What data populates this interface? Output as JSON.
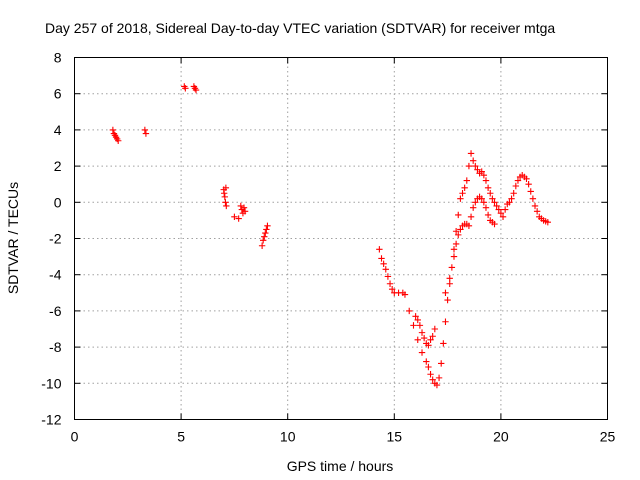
{
  "chart_data": {
    "type": "scatter",
    "title": "Day 257 of 2018, Sidereal Day-to-day VTEC variation (SDTVAR) for receiver mtga",
    "xlabel": "GPS time / hours",
    "ylabel": "SDTVAR / TECUs",
    "xlim": [
      0,
      25
    ],
    "ylim": [
      -12,
      8
    ],
    "x_ticks": [
      0,
      5,
      10,
      15,
      20,
      25
    ],
    "y_ticks": [
      -12,
      -10,
      -8,
      -6,
      -4,
      -2,
      0,
      2,
      4,
      6,
      8
    ],
    "grid": true,
    "legend": "none",
    "marker": "plus",
    "color": "#ff0000",
    "series": [
      {
        "x": [
          1.8,
          1.85,
          1.9,
          1.95,
          2.0,
          2.05,
          3.3,
          3.35,
          5.15,
          5.2,
          5.6,
          5.65,
          5.7,
          7.0,
          7.02,
          7.05,
          7.08,
          7.1,
          7.12,
          7.5,
          7.7,
          7.8,
          7.85,
          7.9,
          7.95,
          8.0,
          8.8,
          8.85,
          8.9,
          8.95,
          9.0,
          9.05,
          14.3,
          14.4,
          14.5,
          14.6,
          14.7,
          14.8,
          14.9,
          15.0,
          15.2,
          15.4,
          15.5,
          15.7,
          15.9,
          16.1,
          16.3,
          16.5,
          16.6,
          16.7,
          16.8,
          16.9,
          17.0,
          17.1,
          17.2,
          17.3,
          17.4,
          17.5,
          17.6,
          17.7,
          17.8,
          17.9,
          18.0,
          18.1,
          18.2,
          18.3,
          18.4,
          18.5,
          18.6,
          18.7,
          18.8,
          18.9,
          19.0,
          19.1,
          19.2,
          19.3,
          19.4,
          19.5,
          19.6,
          19.7,
          19.8,
          19.9,
          20.0,
          20.1,
          20.2,
          20.3,
          20.4,
          20.5,
          20.6,
          20.7,
          20.8,
          20.9,
          21.0,
          21.1,
          21.2,
          21.3,
          21.4,
          21.5,
          21.6,
          21.7,
          21.8,
          21.9,
          22.0,
          22.1,
          22.2,
          16.0,
          16.1,
          16.2,
          16.3,
          16.4,
          16.5,
          16.6,
          16.7,
          16.8,
          16.9,
          17.4,
          17.6,
          17.8,
          17.9,
          18.0,
          18.1,
          18.2,
          18.3,
          18.4,
          18.5,
          18.6,
          18.7,
          18.8,
          18.9,
          19.0,
          19.1,
          19.2,
          19.3,
          19.4,
          19.5,
          19.6,
          19.7
        ],
        "y": [
          4.0,
          3.8,
          3.7,
          3.6,
          3.5,
          3.4,
          4.0,
          3.8,
          6.4,
          6.3,
          6.4,
          6.3,
          6.2,
          0.7,
          0.5,
          0.3,
          0.0,
          0.8,
          -0.2,
          -0.8,
          -0.9,
          -0.2,
          -0.4,
          -0.6,
          -0.3,
          -0.5,
          -2.4,
          -2.1,
          -1.9,
          -1.7,
          -1.5,
          -1.3,
          -2.6,
          -3.1,
          -3.4,
          -3.7,
          -4.1,
          -4.5,
          -4.8,
          -5.0,
          -5.0,
          -5.0,
          -5.1,
          -6.0,
          -6.8,
          -7.6,
          -8.3,
          -8.8,
          -9.1,
          -9.5,
          -9.8,
          -10.0,
          -10.1,
          -9.7,
          -8.9,
          -7.8,
          -6.6,
          -5.4,
          -4.5,
          -3.6,
          -2.6,
          -1.6,
          -0.7,
          0.2,
          0.5,
          0.8,
          1.2,
          2.0,
          2.7,
          2.3,
          2.0,
          1.8,
          1.6,
          1.7,
          1.5,
          1.2,
          0.8,
          0.5,
          0.2,
          0.0,
          -0.2,
          -0.4,
          -0.6,
          -0.8,
          -0.4,
          -0.1,
          0.0,
          0.2,
          0.5,
          0.9,
          1.2,
          1.4,
          1.5,
          1.4,
          1.3,
          1.0,
          0.6,
          0.2,
          -0.2,
          -0.5,
          -0.8,
          -0.9,
          -1.0,
          -1.05,
          -1.1,
          -6.3,
          -6.5,
          -6.8,
          -7.2,
          -7.5,
          -7.8,
          -7.9,
          -7.6,
          -7.4,
          -7.0,
          -5.0,
          -4.2,
          -3.0,
          -2.3,
          -1.8,
          -1.5,
          -1.3,
          -1.2,
          -1.2,
          -1.3,
          -0.8,
          -0.3,
          0.0,
          0.2,
          0.3,
          0.2,
          0.0,
          -0.3,
          -0.7,
          -1.0,
          -1.1,
          -1.2
        ]
      }
    ]
  }
}
